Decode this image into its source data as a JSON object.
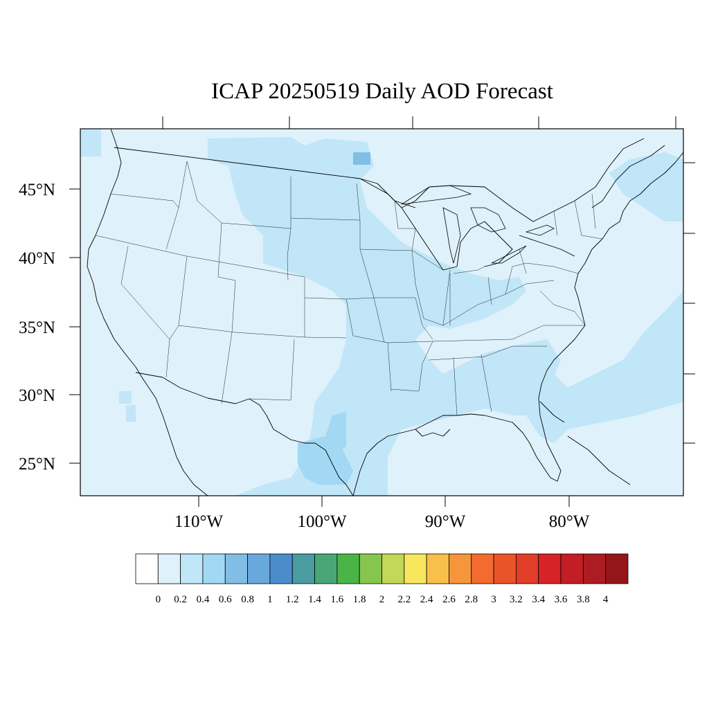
{
  "title": "ICAP 20250519 Daily AOD Forecast",
  "map": {
    "lat_labels": [
      "45°N",
      "40°N",
      "35°N",
      "30°N",
      "25°N"
    ],
    "lon_labels": [
      "110°W",
      "100°W",
      "90°W",
      "80°W"
    ]
  },
  "colorbar": {
    "ticks": [
      "0",
      "0.2",
      "0.4",
      "0.6",
      "0.8",
      "1",
      "1.2",
      "1.4",
      "1.6",
      "1.8",
      "2",
      "2.2",
      "2.4",
      "2.6",
      "2.8",
      "3",
      "3.2",
      "3.4",
      "3.6",
      "3.8",
      "4"
    ],
    "colors": [
      "#ffffff",
      "#dff1fb",
      "#c0e6f8",
      "#a2d8f3",
      "#82bde6",
      "#68a8dc",
      "#4b8ccb",
      "#4a9ca0",
      "#49a676",
      "#4bb447",
      "#86c64e",
      "#c3d758",
      "#f8e65c",
      "#f8c04a",
      "#f6953c",
      "#f36b2e",
      "#ea5429",
      "#e13d28",
      "#d72228",
      "#c21e26",
      "#ae1c23",
      "#951619"
    ]
  },
  "colors": {
    "base": "#dff1fb",
    "band_0_2_0_4": "#c0e6f8",
    "band_0_4_0_6": "#a2d8f3",
    "band_0_6_0_8": "#82bde6"
  }
}
